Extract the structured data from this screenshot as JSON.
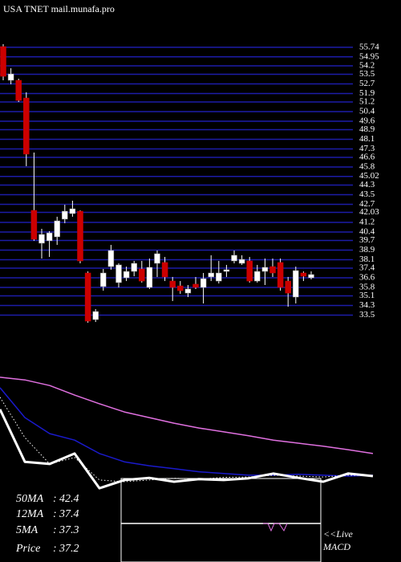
{
  "chart_data": [
    {
      "type": "candlestick",
      "title": "USA TNET mail.munafa.pro",
      "up_color": "#ffffff",
      "down_color": "#cc0000",
      "grid_color": "#1c1ca8",
      "grid": true,
      "ylim": [
        32.6,
        57
      ],
      "yticks": [
        55.74,
        54.95,
        54.2,
        53.5,
        52.7,
        51.9,
        51.2,
        50.4,
        49.6,
        48.9,
        48.1,
        47.3,
        46.6,
        45.8,
        45.02,
        44.3,
        43.5,
        42.7,
        42.03,
        41.2,
        40.4,
        39.7,
        38.9,
        38.1,
        37.4,
        36.6,
        35.8,
        35.1,
        34.3,
        33.5
      ],
      "open": [
        55.8,
        53,
        53,
        51.53,
        42.2,
        39.47,
        39.67,
        40,
        41.47,
        41.93,
        42.13,
        37,
        33.13,
        35.87,
        37.53,
        36.2,
        36.6,
        37.13,
        37.33,
        35.8,
        37.8,
        37.87,
        36.33,
        35.93,
        35.33,
        36.07,
        35.8,
        36.67,
        36.33,
        37.13,
        38,
        37.8,
        38,
        36.33,
        37.13,
        37.53,
        37.87,
        36.33,
        35,
        37,
        36.6
      ],
      "high": [
        56,
        54,
        53.13,
        52,
        47,
        40.67,
        40.47,
        41.67,
        42.67,
        43,
        42.2,
        37.13,
        34,
        37.33,
        39.33,
        37.8,
        37.53,
        38,
        38,
        38.2,
        38.87,
        38.33,
        36.67,
        36.33,
        36,
        36.67,
        37,
        38.47,
        38,
        37.67,
        38.87,
        38.47,
        38.33,
        37.67,
        38.2,
        38.2,
        38.2,
        36.67,
        37.53,
        37.13,
        37.13
      ],
      "low": [
        53,
        52.67,
        51.2,
        45.87,
        39.67,
        38.2,
        38.33,
        39.33,
        41.13,
        41.67,
        37.8,
        32.87,
        32.93,
        35.53,
        37.27,
        35.8,
        36.33,
        36.73,
        36.2,
        35.67,
        36.67,
        36.33,
        34.67,
        35.27,
        35,
        35.67,
        34.47,
        36.33,
        36.13,
        36.67,
        37.8,
        37.67,
        36.2,
        36.2,
        36,
        36.67,
        35.53,
        34.2,
        34.47,
        36.33,
        36.47
      ],
      "close": [
        53.33,
        53.53,
        51.33,
        46.87,
        39.8,
        40.2,
        40.33,
        41.33,
        42.13,
        42.33,
        38,
        33,
        33.8,
        37,
        38.87,
        37.67,
        37.13,
        37.8,
        36.33,
        37.47,
        38.6,
        36.67,
        35.8,
        35.53,
        35.67,
        35.8,
        36.53,
        37,
        37,
        37.27,
        38.47,
        38.13,
        36.33,
        37.13,
        37.47,
        37,
        35.8,
        35.33,
        37.2,
        36.73,
        36.87
      ]
    },
    {
      "type": "line",
      "ylim": [
        32.2,
        71.1
      ],
      "separator": ":",
      "series": [
        {
          "name": "50MA",
          "color": "#e070e0",
          "style": "solid",
          "values": [
            60.0,
            59.4,
            58.1,
            55.9,
            53.9,
            52.0,
            50.7,
            49.4,
            48.3,
            47.4,
            46.5,
            45.5,
            44.8,
            44.1,
            43.3,
            42.4
          ]
        },
        {
          "name": "12MA",
          "color": "#1a1acc",
          "style": "solid",
          "values": [
            57.6,
            50.7,
            47.0,
            45.5,
            42.4,
            40.5,
            39.6,
            38.9,
            38.2,
            37.8,
            37.4,
            37.4,
            37.6,
            37.4,
            37.2,
            37.4
          ]
        },
        {
          "name": "5MA",
          "color": "#ffffff",
          "style": "dotted",
          "values": [
            55.4,
            46.1,
            40.0,
            41.5,
            36.3,
            35.9,
            36.3,
            36.7,
            36.5,
            36.9,
            37.0,
            37.4,
            37.2,
            37.0,
            37.4,
            37.3
          ]
        },
        {
          "name": "Price",
          "color": "#ffffff",
          "style": "thick",
          "values": [
            52.6,
            40.5,
            40.0,
            42.4,
            34.4,
            36.3,
            36.8,
            35.9,
            36.5,
            36.3,
            36.7,
            37.8,
            36.8,
            35.9,
            37.8,
            37.2
          ]
        }
      ],
      "macd_label": [
        "<<Live",
        "MACD"
      ]
    }
  ]
}
